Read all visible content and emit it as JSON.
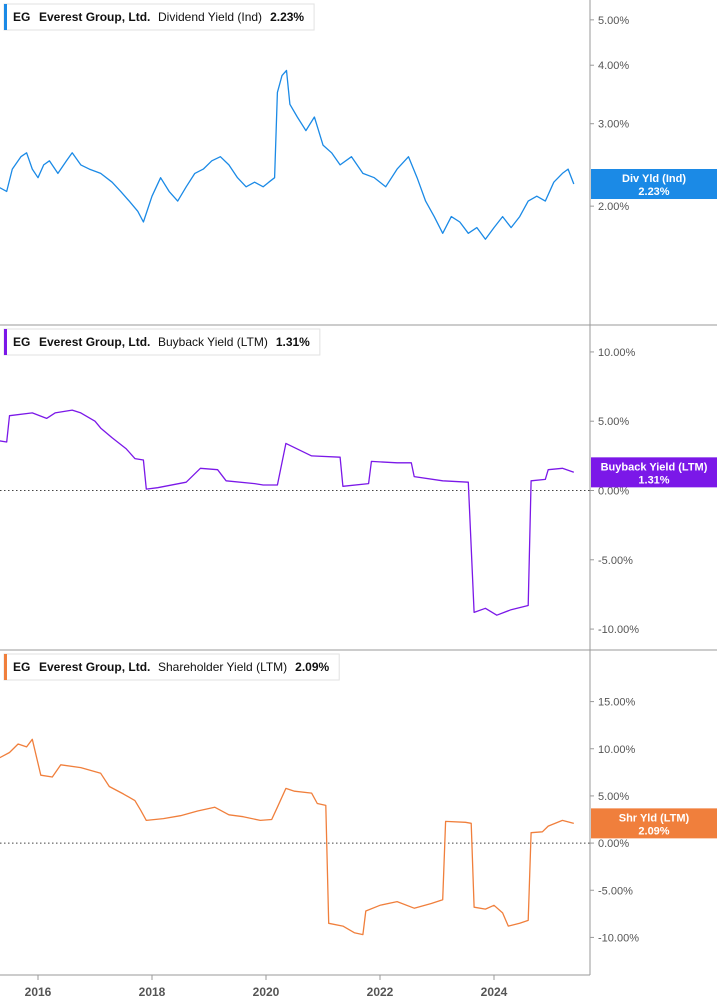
{
  "chart_data": [
    {
      "type": "line",
      "ticker": "EG",
      "company": "Everest Group, Ltd.",
      "metric": "Dividend Yield (Ind)",
      "last_value": "2.23%",
      "tag_label": "Div Yld (Ind)",
      "tag_value": "2.23%",
      "color": "#1b8ae6",
      "scale": "log",
      "ylim": [
        1.2,
        5.3
      ],
      "yticks": [
        {
          "v": 5.0,
          "label": "5.00%"
        },
        {
          "v": 4.0,
          "label": "4.00%"
        },
        {
          "v": 3.0,
          "label": "3.00%"
        },
        {
          "v": 2.0,
          "label": "2.00%"
        }
      ],
      "points": [
        {
          "x": 2015.0,
          "y": 2.05
        },
        {
          "x": 2015.15,
          "y": 2.1
        },
        {
          "x": 2015.3,
          "y": 2.2
        },
        {
          "x": 2015.45,
          "y": 2.15
        },
        {
          "x": 2015.55,
          "y": 2.4
        },
        {
          "x": 2015.7,
          "y": 2.55
        },
        {
          "x": 2015.8,
          "y": 2.6
        },
        {
          "x": 2015.9,
          "y": 2.4
        },
        {
          "x": 2016.0,
          "y": 2.3
        },
        {
          "x": 2016.1,
          "y": 2.45
        },
        {
          "x": 2016.2,
          "y": 2.5
        },
        {
          "x": 2016.35,
          "y": 2.35
        },
        {
          "x": 2016.5,
          "y": 2.5
        },
        {
          "x": 2016.6,
          "y": 2.6
        },
        {
          "x": 2016.75,
          "y": 2.45
        },
        {
          "x": 2016.9,
          "y": 2.4
        },
        {
          "x": 2017.1,
          "y": 2.35
        },
        {
          "x": 2017.3,
          "y": 2.25
        },
        {
          "x": 2017.45,
          "y": 2.15
        },
        {
          "x": 2017.6,
          "y": 2.05
        },
        {
          "x": 2017.75,
          "y": 1.95
        },
        {
          "x": 2017.85,
          "y": 1.85
        },
        {
          "x": 2018.0,
          "y": 2.1
        },
        {
          "x": 2018.15,
          "y": 2.3
        },
        {
          "x": 2018.3,
          "y": 2.15
        },
        {
          "x": 2018.45,
          "y": 2.05
        },
        {
          "x": 2018.6,
          "y": 2.2
        },
        {
          "x": 2018.75,
          "y": 2.35
        },
        {
          "x": 2018.9,
          "y": 2.4
        },
        {
          "x": 2019.05,
          "y": 2.5
        },
        {
          "x": 2019.2,
          "y": 2.55
        },
        {
          "x": 2019.35,
          "y": 2.45
        },
        {
          "x": 2019.5,
          "y": 2.3
        },
        {
          "x": 2019.65,
          "y": 2.2
        },
        {
          "x": 2019.8,
          "y": 2.25
        },
        {
          "x": 2019.95,
          "y": 2.2
        },
        {
          "x": 2020.05,
          "y": 2.25
        },
        {
          "x": 2020.15,
          "y": 2.3
        },
        {
          "x": 2020.2,
          "y": 3.5
        },
        {
          "x": 2020.28,
          "y": 3.8
        },
        {
          "x": 2020.36,
          "y": 3.9
        },
        {
          "x": 2020.42,
          "y": 3.3
        },
        {
          "x": 2020.55,
          "y": 3.1
        },
        {
          "x": 2020.7,
          "y": 2.9
        },
        {
          "x": 2020.85,
          "y": 3.1
        },
        {
          "x": 2021.0,
          "y": 2.7
        },
        {
          "x": 2021.15,
          "y": 2.6
        },
        {
          "x": 2021.3,
          "y": 2.45
        },
        {
          "x": 2021.5,
          "y": 2.55
        },
        {
          "x": 2021.7,
          "y": 2.35
        },
        {
          "x": 2021.9,
          "y": 2.3
        },
        {
          "x": 2022.1,
          "y": 2.2
        },
        {
          "x": 2022.3,
          "y": 2.4
        },
        {
          "x": 2022.5,
          "y": 2.55
        },
        {
          "x": 2022.65,
          "y": 2.3
        },
        {
          "x": 2022.8,
          "y": 2.05
        },
        {
          "x": 2022.95,
          "y": 1.9
        },
        {
          "x": 2023.1,
          "y": 1.75
        },
        {
          "x": 2023.25,
          "y": 1.9
        },
        {
          "x": 2023.4,
          "y": 1.85
        },
        {
          "x": 2023.55,
          "y": 1.75
        },
        {
          "x": 2023.7,
          "y": 1.8
        },
        {
          "x": 2023.85,
          "y": 1.7
        },
        {
          "x": 2024.0,
          "y": 1.8
        },
        {
          "x": 2024.15,
          "y": 1.9
        },
        {
          "x": 2024.3,
          "y": 1.8
        },
        {
          "x": 2024.45,
          "y": 1.9
        },
        {
          "x": 2024.6,
          "y": 2.05
        },
        {
          "x": 2024.75,
          "y": 2.1
        },
        {
          "x": 2024.9,
          "y": 2.05
        },
        {
          "x": 2025.05,
          "y": 2.25
        },
        {
          "x": 2025.2,
          "y": 2.35
        },
        {
          "x": 2025.3,
          "y": 2.4
        },
        {
          "x": 2025.4,
          "y": 2.23
        }
      ]
    },
    {
      "type": "line",
      "ticker": "EG",
      "company": "Everest Group, Ltd.",
      "metric": "Buyback Yield (LTM)",
      "last_value": "1.31%",
      "tag_label": "Buyback Yield (LTM)",
      "tag_value": "1.31%",
      "color": "#7b18e8",
      "scale": "linear",
      "ylim": [
        -10.5,
        10.5
      ],
      "zero_line": true,
      "yticks": [
        {
          "v": 10,
          "label": "10.00%"
        },
        {
          "v": 5,
          "label": "5.00%"
        },
        {
          "v": 0,
          "label": "0.00%"
        },
        {
          "v": -5,
          "label": "-5.00%"
        },
        {
          "v": -10,
          "label": "-10.00%"
        }
      ],
      "points": [
        {
          "x": 2015.0,
          "y": 3.8
        },
        {
          "x": 2015.45,
          "y": 3.5
        },
        {
          "x": 2015.5,
          "y": 5.4
        },
        {
          "x": 2015.9,
          "y": 5.6
        },
        {
          "x": 2016.15,
          "y": 5.2
        },
        {
          "x": 2016.3,
          "y": 5.6
        },
        {
          "x": 2016.6,
          "y": 5.8
        },
        {
          "x": 2016.75,
          "y": 5.6
        },
        {
          "x": 2017.0,
          "y": 5.0
        },
        {
          "x": 2017.1,
          "y": 4.5
        },
        {
          "x": 2017.3,
          "y": 3.8
        },
        {
          "x": 2017.55,
          "y": 3.0
        },
        {
          "x": 2017.7,
          "y": 2.3
        },
        {
          "x": 2017.85,
          "y": 2.2
        },
        {
          "x": 2017.9,
          "y": 0.1
        },
        {
          "x": 2018.1,
          "y": 0.2
        },
        {
          "x": 2018.6,
          "y": 0.6
        },
        {
          "x": 2018.85,
          "y": 1.6
        },
        {
          "x": 2019.15,
          "y": 1.5
        },
        {
          "x": 2019.3,
          "y": 0.7
        },
        {
          "x": 2019.8,
          "y": 0.5
        },
        {
          "x": 2019.95,
          "y": 0.4
        },
        {
          "x": 2020.2,
          "y": 0.4
        },
        {
          "x": 2020.35,
          "y": 3.4
        },
        {
          "x": 2020.8,
          "y": 2.5
        },
        {
          "x": 2021.3,
          "y": 2.4
        },
        {
          "x": 2021.35,
          "y": 0.3
        },
        {
          "x": 2021.8,
          "y": 0.5
        },
        {
          "x": 2021.85,
          "y": 2.1
        },
        {
          "x": 2022.3,
          "y": 2.0
        },
        {
          "x": 2022.55,
          "y": 2.0
        },
        {
          "x": 2022.6,
          "y": 1.0
        },
        {
          "x": 2023.1,
          "y": 0.7
        },
        {
          "x": 2023.55,
          "y": 0.6
        },
        {
          "x": 2023.65,
          "y": -8.8
        },
        {
          "x": 2023.85,
          "y": -8.5
        },
        {
          "x": 2024.05,
          "y": -9.0
        },
        {
          "x": 2024.3,
          "y": -8.6
        },
        {
          "x": 2024.6,
          "y": -8.3
        },
        {
          "x": 2024.65,
          "y": 0.7
        },
        {
          "x": 2024.9,
          "y": 0.8
        },
        {
          "x": 2024.95,
          "y": 1.5
        },
        {
          "x": 2025.2,
          "y": 1.6
        },
        {
          "x": 2025.4,
          "y": 1.31
        }
      ]
    },
    {
      "type": "line",
      "ticker": "EG",
      "company": "Everest Group, Ltd.",
      "metric": "Shareholder Yield (LTM)",
      "last_value": "2.09%",
      "tag_label": "Shr Yld (LTM)",
      "tag_value": "2.09%",
      "color": "#f07f3c",
      "scale": "linear",
      "ylim": [
        -12.5,
        17.5
      ],
      "zero_line": true,
      "yticks": [
        {
          "v": 15,
          "label": "15.00%"
        },
        {
          "v": 10,
          "label": "10.00%"
        },
        {
          "v": 5,
          "label": "5.00%"
        },
        {
          "v": 0,
          "label": "0.00%"
        },
        {
          "v": -5,
          "label": "-5.00%"
        },
        {
          "v": -10,
          "label": "-10.00%"
        }
      ],
      "points": [
        {
          "x": 2015.0,
          "y": 3.9
        },
        {
          "x": 2015.2,
          "y": 3.9
        },
        {
          "x": 2015.25,
          "y": 8.8
        },
        {
          "x": 2015.5,
          "y": 9.6
        },
        {
          "x": 2015.65,
          "y": 10.5
        },
        {
          "x": 2015.8,
          "y": 10.2
        },
        {
          "x": 2015.9,
          "y": 11.0
        },
        {
          "x": 2016.05,
          "y": 7.2
        },
        {
          "x": 2016.25,
          "y": 7.0
        },
        {
          "x": 2016.4,
          "y": 8.3
        },
        {
          "x": 2016.75,
          "y": 8.0
        },
        {
          "x": 2017.1,
          "y": 7.4
        },
        {
          "x": 2017.25,
          "y": 6.0
        },
        {
          "x": 2017.5,
          "y": 5.2
        },
        {
          "x": 2017.7,
          "y": 4.5
        },
        {
          "x": 2017.8,
          "y": 3.5
        },
        {
          "x": 2017.9,
          "y": 2.4
        },
        {
          "x": 2018.2,
          "y": 2.6
        },
        {
          "x": 2018.5,
          "y": 2.9
        },
        {
          "x": 2018.8,
          "y": 3.4
        },
        {
          "x": 2019.1,
          "y": 3.8
        },
        {
          "x": 2019.35,
          "y": 3.0
        },
        {
          "x": 2019.6,
          "y": 2.8
        },
        {
          "x": 2019.9,
          "y": 2.4
        },
        {
          "x": 2020.1,
          "y": 2.5
        },
        {
          "x": 2020.2,
          "y": 3.8
        },
        {
          "x": 2020.35,
          "y": 5.8
        },
        {
          "x": 2020.5,
          "y": 5.5
        },
        {
          "x": 2020.8,
          "y": 5.3
        },
        {
          "x": 2020.9,
          "y": 4.2
        },
        {
          "x": 2021.05,
          "y": 4.0
        },
        {
          "x": 2021.1,
          "y": -8.5
        },
        {
          "x": 2021.35,
          "y": -8.8
        },
        {
          "x": 2021.55,
          "y": -9.5
        },
        {
          "x": 2021.7,
          "y": -9.7
        },
        {
          "x": 2021.75,
          "y": -7.2
        },
        {
          "x": 2022.0,
          "y": -6.6
        },
        {
          "x": 2022.3,
          "y": -6.2
        },
        {
          "x": 2022.6,
          "y": -6.9
        },
        {
          "x": 2022.9,
          "y": -6.4
        },
        {
          "x": 2023.1,
          "y": -6.0
        },
        {
          "x": 2023.15,
          "y": 2.3
        },
        {
          "x": 2023.5,
          "y": 2.2
        },
        {
          "x": 2023.6,
          "y": 2.1
        },
        {
          "x": 2023.65,
          "y": -6.8
        },
        {
          "x": 2023.85,
          "y": -7.0
        },
        {
          "x": 2024.0,
          "y": -6.6
        },
        {
          "x": 2024.15,
          "y": -7.4
        },
        {
          "x": 2024.25,
          "y": -8.8
        },
        {
          "x": 2024.45,
          "y": -8.5
        },
        {
          "x": 2024.6,
          "y": -8.2
        },
        {
          "x": 2024.65,
          "y": 1.1
        },
        {
          "x": 2024.85,
          "y": 1.2
        },
        {
          "x": 2024.95,
          "y": 1.8
        },
        {
          "x": 2025.2,
          "y": 2.4
        },
        {
          "x": 2025.4,
          "y": 2.09
        }
      ]
    }
  ],
  "x_axis": {
    "ticks": [
      {
        "v": 2016,
        "label": "2016"
      },
      {
        "v": 2018,
        "label": "2018"
      },
      {
        "v": 2020,
        "label": "2020"
      },
      {
        "v": 2022,
        "label": "2022"
      },
      {
        "v": 2024,
        "label": "2024"
      }
    ]
  }
}
